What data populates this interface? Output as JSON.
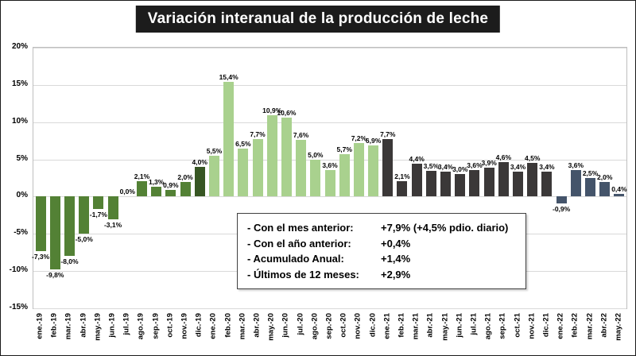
{
  "title": "Variación interanual de la producción de leche",
  "info_box": {
    "rows": [
      {
        "label": "- Con el mes anterior:",
        "value": "+7,9% (+4,5% pdio. diario)"
      },
      {
        "label": "- Con el año anterior:",
        "value": "+0,4%"
      },
      {
        "label": "- Acumulado Anual:",
        "value": "+1,4%"
      },
      {
        "label": "- Últimos de 12 meses:",
        "value": "+2,9%"
      }
    ]
  },
  "chart_data": {
    "type": "bar",
    "title": "Variación interanual de la producción de leche",
    "xlabel": "",
    "ylabel": "",
    "ylim": [
      -15,
      20
    ],
    "grid": true,
    "legend": "none",
    "y_ticks": [
      {
        "label": "20%",
        "value": 20
      },
      {
        "label": "15%",
        "value": 15
      },
      {
        "label": "10%",
        "value": 10
      },
      {
        "label": "5%",
        "value": 5
      },
      {
        "label": "0%",
        "value": 0
      },
      {
        "label": "-5%",
        "value": -5
      },
      {
        "label": "-10%",
        "value": -10
      },
      {
        "label": "-15%",
        "value": -15
      }
    ],
    "categories": [
      "ene.-19",
      "feb.-19",
      "mar.-19",
      "abr.-19",
      "may.-19",
      "jun.-19",
      "jul.-19",
      "ago.-19",
      "sep.-19",
      "oct.-19",
      "nov.-19",
      "dic.-19",
      "ene.-20",
      "feb.-20",
      "mar.-20",
      "abr.-20",
      "may.-20",
      "jun.-20",
      "jul.-20",
      "ago.-20",
      "sep.-20",
      "oct.-20",
      "nov.-20",
      "dic.-20",
      "ene.-21",
      "feb.-21",
      "mar.-21",
      "abr.-21",
      "may.-21",
      "jun.-21",
      "jul.-21",
      "ago.-21",
      "sep.-21",
      "oct.-21",
      "nov.-21",
      "dic.-21",
      "ene.-22",
      "feb.-22",
      "mar.-22",
      "abr.-22",
      "may.-22"
    ],
    "values": [
      -7.3,
      -9.8,
      -8.0,
      -5.0,
      -1.7,
      -3.1,
      0.0,
      2.1,
      1.3,
      0.9,
      2.0,
      4.0,
      5.5,
      15.4,
      6.5,
      7.7,
      10.9,
      10.6,
      7.6,
      5.0,
      3.6,
      5.7,
      7.2,
      6.9,
      7.7,
      2.1,
      4.4,
      3.5,
      3.4,
      3.0,
      3.6,
      3.9,
      4.6,
      3.4,
      4.5,
      3.4,
      -0.9,
      3.6,
      2.5,
      2.0,
      0.4
    ],
    "value_labels": [
      "-7,3%",
      "-9,8%",
      "-8,0%",
      "-5,0%",
      "-1,7%",
      "-3,1%",
      "0,0%",
      "2,1%",
      "1,3%",
      "0,9%",
      "2,0%",
      "4,0%",
      "5,5%",
      "15,4%",
      "6,5%",
      "7,7%",
      "10,9%",
      "10,6%",
      "7,6%",
      "5,0%",
      "3,6%",
      "5,7%",
      "7,2%",
      "6,9%",
      "7,7%",
      "2,1%",
      "4,4%",
      "3,5%",
      "3,4%",
      "3,0%",
      "3,6%",
      "3,9%",
      "4,6%",
      "3,4%",
      "4,5%",
      "3,4%",
      "-0,9%",
      "3,6%",
      "2,5%",
      "2,0%",
      "0,4%"
    ],
    "period_colors": {
      "y2019": "#538135",
      "dic_2019": "#375623",
      "y2020": "#A9D18E",
      "y2021": "#3B3838",
      "y2022": "#44546A"
    },
    "title_bg_color": "#1c1c1c",
    "title_text_color": "#ffffff",
    "gridline_color": "#d9d9d9"
  }
}
